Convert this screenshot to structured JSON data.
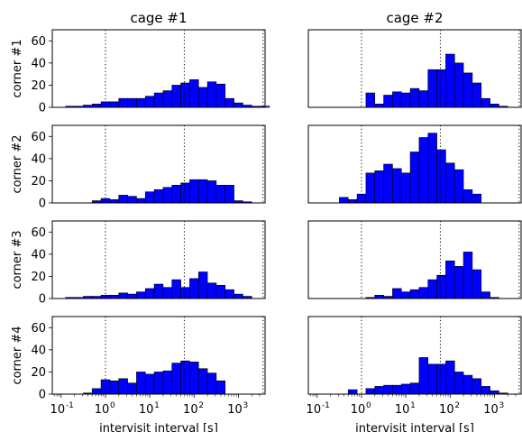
{
  "figure": {
    "column_titles": [
      "cage #1",
      "cage #2"
    ],
    "row_labels": [
      "corner #1",
      "corner #2",
      "corner #3",
      "corner #4"
    ],
    "xlabel": "intervisit interval [s]",
    "bar_color": "#0000ff",
    "edge_color": "#000000",
    "reference_line_color": "#000000"
  },
  "chart_data": [
    {
      "type": "bar",
      "title": "cage #1",
      "ylabel": "corner #1",
      "xlabel": "",
      "xscale": "log",
      "ylim": [
        0,
        70
      ],
      "yticks": [
        "0",
        "20",
        "40",
        "60"
      ],
      "bin_edges_log10": [
        -0.9,
        -0.7,
        -0.5,
        -0.3,
        -0.1,
        0.1,
        0.3,
        0.5,
        0.7,
        0.9,
        1.1,
        1.3,
        1.5,
        1.7,
        1.9,
        2.1,
        2.3,
        2.5,
        2.7,
        2.9,
        3.1,
        3.3,
        3.5,
        3.7
      ],
      "values": [
        1,
        1,
        2,
        3,
        5,
        5,
        8,
        8,
        8,
        10,
        13,
        15,
        20,
        22,
        25,
        18,
        23,
        21,
        8,
        4,
        2,
        1,
        1
      ],
      "reference_lines_s": [
        1,
        60,
        3600
      ]
    },
    {
      "type": "bar",
      "title": "cage #2",
      "ylabel": "",
      "xlabel": "",
      "xscale": "log",
      "ylim": [
        0,
        70
      ],
      "yticks": [],
      "bin_edges_log10": [
        -0.9,
        -0.7,
        -0.5,
        -0.3,
        -0.1,
        0.1,
        0.3,
        0.5,
        0.7,
        0.9,
        1.1,
        1.3,
        1.5,
        1.7,
        1.9,
        2.1,
        2.3,
        2.5,
        2.7,
        2.9,
        3.1,
        3.3,
        3.5,
        3.7
      ],
      "values": [
        0,
        0,
        0,
        0,
        0,
        13,
        3,
        11,
        14,
        13,
        17,
        15,
        34,
        34,
        48,
        40,
        31,
        22,
        8,
        3,
        1,
        0,
        0
      ],
      "reference_lines_s": [
        1,
        60,
        3600
      ]
    },
    {
      "type": "bar",
      "title": "",
      "ylabel": "corner #2",
      "xlabel": "",
      "xscale": "log",
      "ylim": [
        0,
        70
      ],
      "yticks": [
        "0",
        "20",
        "40",
        "60"
      ],
      "bin_edges_log10": [
        -0.9,
        -0.7,
        -0.5,
        -0.3,
        -0.1,
        0.1,
        0.3,
        0.5,
        0.7,
        0.9,
        1.1,
        1.3,
        1.5,
        1.7,
        1.9,
        2.1,
        2.3,
        2.5,
        2.7,
        2.9,
        3.1,
        3.3,
        3.5,
        3.7
      ],
      "values": [
        0,
        0,
        0,
        2,
        4,
        3,
        7,
        6,
        4,
        10,
        12,
        14,
        16,
        18,
        21,
        21,
        20,
        16,
        16,
        2,
        1,
        0,
        0
      ],
      "reference_lines_s": [
        1,
        60,
        3600
      ]
    },
    {
      "type": "bar",
      "title": "",
      "ylabel": "",
      "xlabel": "",
      "xscale": "log",
      "ylim": [
        0,
        70
      ],
      "yticks": [],
      "bin_edges_log10": [
        -0.9,
        -0.7,
        -0.5,
        -0.3,
        -0.1,
        0.1,
        0.3,
        0.5,
        0.7,
        0.9,
        1.1,
        1.3,
        1.5,
        1.7,
        1.9,
        2.1,
        2.3,
        2.5,
        2.7,
        2.9,
        3.1,
        3.3,
        3.5,
        3.7
      ],
      "values": [
        0,
        0,
        5,
        3,
        8,
        27,
        29,
        35,
        31,
        27,
        46,
        59,
        63,
        48,
        36,
        30,
        12,
        8,
        0,
        0,
        0,
        0,
        0
      ],
      "reference_lines_s": [
        1,
        60,
        3600
      ]
    },
    {
      "type": "bar",
      "title": "",
      "ylabel": "corner #3",
      "xlabel": "",
      "xscale": "log",
      "ylim": [
        0,
        70
      ],
      "yticks": [
        "0",
        "20",
        "40",
        "60"
      ],
      "bin_edges_log10": [
        -0.9,
        -0.7,
        -0.5,
        -0.3,
        -0.1,
        0.1,
        0.3,
        0.5,
        0.7,
        0.9,
        1.1,
        1.3,
        1.5,
        1.7,
        1.9,
        2.1,
        2.3,
        2.5,
        2.7,
        2.9,
        3.1,
        3.3,
        3.5,
        3.7
      ],
      "values": [
        1,
        1,
        2,
        2,
        3,
        3,
        5,
        4,
        6,
        9,
        13,
        10,
        17,
        10,
        18,
        24,
        14,
        12,
        8,
        4,
        2,
        0,
        0
      ],
      "reference_lines_s": [
        1,
        60,
        3600
      ]
    },
    {
      "type": "bar",
      "title": "",
      "ylabel": "",
      "xlabel": "",
      "xscale": "log",
      "ylim": [
        0,
        70
      ],
      "yticks": [],
      "bin_edges_log10": [
        -0.9,
        -0.7,
        -0.5,
        -0.3,
        -0.1,
        0.1,
        0.3,
        0.5,
        0.7,
        0.9,
        1.1,
        1.3,
        1.5,
        1.7,
        1.9,
        2.1,
        2.3,
        2.5,
        2.7,
        2.9,
        3.1,
        3.3,
        3.5,
        3.7
      ],
      "values": [
        0,
        0,
        0,
        0,
        0,
        1,
        3,
        2,
        9,
        6,
        8,
        10,
        17,
        21,
        34,
        29,
        42,
        26,
        6,
        1,
        0,
        0,
        0
      ],
      "reference_lines_s": [
        1,
        60,
        3600
      ]
    },
    {
      "type": "bar",
      "title": "",
      "ylabel": "corner #4",
      "xlabel": "intervisit interval [s]",
      "xscale": "log",
      "ylim": [
        0,
        70
      ],
      "yticks": [
        "0",
        "20",
        "40",
        "60"
      ],
      "xtick_positions_log10": [
        -1,
        0,
        1,
        2,
        3
      ],
      "xtick_labels": [
        {
          "base": "10",
          "exp": "-1"
        },
        {
          "base": "10",
          "exp": "0"
        },
        {
          "base": "10",
          "exp": "1"
        },
        {
          "base": "10",
          "exp": "2"
        },
        {
          "base": "10",
          "exp": "3"
        }
      ],
      "bin_edges_log10": [
        -0.9,
        -0.7,
        -0.5,
        -0.3,
        -0.1,
        0.1,
        0.3,
        0.5,
        0.7,
        0.9,
        1.1,
        1.3,
        1.5,
        1.7,
        1.9,
        2.1,
        2.3,
        2.5,
        2.7,
        2.9,
        3.1,
        3.3,
        3.5,
        3.7
      ],
      "values": [
        0,
        0,
        1,
        5,
        13,
        12,
        14,
        10,
        20,
        18,
        20,
        21,
        28,
        30,
        29,
        23,
        19,
        12,
        0,
        0,
        0,
        0,
        0
      ],
      "reference_lines_s": [
        1,
        60,
        3600
      ]
    },
    {
      "type": "bar",
      "title": "",
      "ylabel": "",
      "xlabel": "intervisit interval [s]",
      "xscale": "log",
      "ylim": [
        0,
        70
      ],
      "yticks": [],
      "xtick_positions_log10": [
        -1,
        0,
        1,
        2,
        3
      ],
      "xtick_labels": [
        {
          "base": "10",
          "exp": "-1"
        },
        {
          "base": "10",
          "exp": "0"
        },
        {
          "base": "10",
          "exp": "1"
        },
        {
          "base": "10",
          "exp": "2"
        },
        {
          "base": "10",
          "exp": "3"
        }
      ],
      "bin_edges_log10": [
        -0.9,
        -0.7,
        -0.5,
        -0.3,
        -0.1,
        0.1,
        0.3,
        0.5,
        0.7,
        0.9,
        1.1,
        1.3,
        1.5,
        1.7,
        1.9,
        2.1,
        2.3,
        2.5,
        2.7,
        2.9,
        3.1,
        3.3,
        3.5,
        3.7
      ],
      "values": [
        0,
        0,
        0,
        4,
        0,
        5,
        7,
        8,
        8,
        9,
        10,
        33,
        27,
        27,
        30,
        20,
        17,
        14,
        7,
        3,
        1,
        0,
        0
      ],
      "reference_lines_s": [
        1,
        60,
        3600
      ]
    }
  ]
}
